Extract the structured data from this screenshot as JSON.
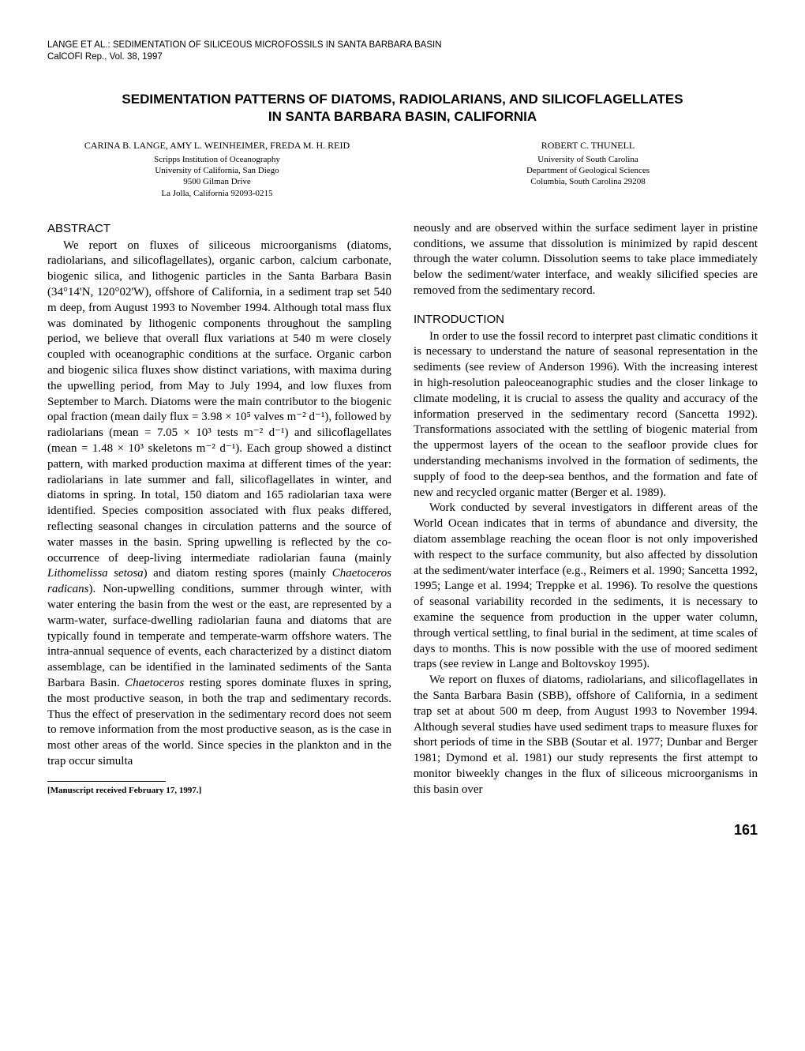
{
  "running_header": {
    "line1": "LANGE ET AL.: SEDIMENTATION OF SILICEOUS MICROFOSSILS IN SANTA BARBARA BASIN",
    "line2": "CalCOFI Rep., Vol. 38, 1997"
  },
  "title": {
    "line1": "SEDIMENTATION PATTERNS OF DIATOMS, RADIOLARIANS, AND SILICOFLAGELLATES",
    "line2": "IN SANTA BARBARA BASIN, CALIFORNIA"
  },
  "authors_left": {
    "names": "CARINA B. LANGE, AMY L. WEINHEIMER, FREDA M. H. REID",
    "affil1": "Scripps Institution of Oceanography",
    "affil2": "University of California, San Diego",
    "affil3": "9500 Gilman Drive",
    "affil4": "La Jolla, California 92093-0215"
  },
  "authors_right": {
    "names": "ROBERT C. THUNELL",
    "affil1": "University of South Carolina",
    "affil2": "Department of Geological Sciences",
    "affil3": "Columbia, South Carolina 29208"
  },
  "abstract_heading": "ABSTRACT",
  "abstract_p1": "We report on fluxes of siliceous microorganisms (diatoms, radiolarians, and silicoflagellates), organic carbon, calcium carbonate, biogenic silica, and lithogenic particles in the Santa Barbara Basin (34°14'N, 120°02'W), offshore of California, in a sediment trap set 540 m deep, from August 1993 to November 1994. Although total mass flux was dominated by lithogenic components throughout the sampling period, we believe that overall flux variations at 540 m were closely coupled with oceanographic conditions at the surface. Organic carbon and biogenic silica fluxes show distinct variations, with maxima during the upwelling period, from May to July 1994, and low fluxes from September to March. Diatoms were the main contributor to the biogenic opal fraction (mean daily flux = 3.98 × 10⁵ valves m⁻² d⁻¹), followed by radiolarians (mean = 7.05 × 10³ tests m⁻² d⁻¹) and silicoflagellates (mean = 1.48 × 10³ skeletons m⁻² d⁻¹). Each group showed a distinct pattern, with marked production maxima at different times of the year: radiolarians in late summer and fall, silicoflagellates in winter, and diatoms in spring. In total, 150 diatom and 165 radiolarian taxa were identified. Species composition associated with flux peaks differed, reflecting seasonal changes in circulation patterns and the source of water masses in the basin. Spring upwelling is reflected by the co-occurrence of deep-living intermediate radiolarian fauna (mainly ",
  "abstract_i1": "Lithomelissa setosa",
  "abstract_p1b": ") and diatom resting spores (mainly ",
  "abstract_i2": "Chaetoceros radicans",
  "abstract_p1c": "). Non-upwelling conditions, summer through winter, with water entering the basin from the west or the east, are represented by a warm-water, surface-dwelling radiolarian fauna and diatoms that are typically found in temperate and temperate-warm offshore waters. The intra-annual sequence of events, each characterized by a distinct diatom assemblage, can be identified in the laminated sediments of the Santa Barbara Basin. ",
  "abstract_i3": "Chaetoceros",
  "abstract_p1d": " resting spores dominate fluxes in spring, the most productive season, in both the trap and sedimentary records. Thus the effect of preservation in the sedimentary record does not seem to remove information from the most productive season, as is the case in most other areas of the world. Since species in the plankton and in the trap occur simulta",
  "col2_cont": "neously and are observed within the surface sediment layer in pristine conditions, we assume that dissolution is minimized by rapid descent through the water column. Dissolution seems to take place immediately below the sediment/water interface, and weakly silicified species are removed from the sedimentary record.",
  "intro_heading": "INTRODUCTION",
  "intro_p1": "In order to use the fossil record to interpret past climatic conditions it is necessary to understand the nature of seasonal representation in the sediments (see review of Anderson 1996). With the increasing interest in high-resolution paleoceanographic studies and the closer linkage to climate modeling, it is crucial to assess the quality and accuracy of the information preserved in the sedimentary record (Sancetta 1992). Transformations associated with the settling of biogenic material from the uppermost layers of the ocean to the seafloor provide clues for understanding mechanisms involved in the formation of sediments, the supply of food to the deep-sea benthos, and the formation and fate of new and recycled organic matter (Berger et al. 1989).",
  "intro_p2": "Work conducted by several investigators in different areas of the World Ocean indicates that in terms of abundance and diversity, the diatom assemblage reaching the ocean floor is not only impoverished with respect to the surface community, but also affected by dissolution at the sediment/water interface (e.g., Reimers et al. 1990; Sancetta 1992, 1995; Lange et al. 1994; Treppke et al. 1996). To resolve the questions of seasonal variability recorded in the sediments, it is necessary to examine the sequence from production in the upper water column, through vertical settling, to final burial in the sediment, at time scales of days to months. This is now possible with the use of moored sediment traps (see review in Lange and Boltovskoy 1995).",
  "intro_p3": "We report on fluxes of diatoms, radiolarians, and silicoflagellates in the Santa Barbara Basin (SBB), offshore of California, in a sediment trap set at about 500 m deep, from August 1993 to November 1994. Although several studies have used sediment traps to measure fluxes for short periods of time in the SBB (Soutar et al. 1977; Dunbar and Berger 1981; Dymond et al. 1981) our study represents the first attempt to monitor biweekly changes in the flux of siliceous microorganisms in this basin over",
  "footnote": "[Manuscript received February 17, 1997.]",
  "page_number": "161"
}
